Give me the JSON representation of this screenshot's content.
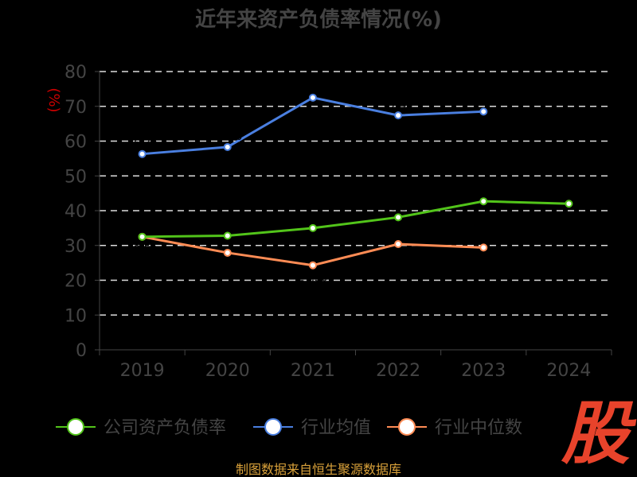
{
  "chart_data": {
    "type": "line",
    "title": "近年来资产负债率情况(%)",
    "ylabel": "(%)",
    "xlabel": "",
    "categories": [
      "2019",
      "2020",
      "2021",
      "2022",
      "2023",
      "2024"
    ],
    "ylim": [
      0,
      80
    ],
    "yticks": [
      0,
      10,
      20,
      30,
      40,
      50,
      60,
      70,
      80
    ],
    "grid": true,
    "legend_position": "bottom",
    "series": [
      {
        "name": "公司资产负债率",
        "color": "#52c41a",
        "values": [
          32.5,
          32.8,
          35.0,
          38.1,
          42.7,
          42.0
        ]
      },
      {
        "name": "行业均值",
        "color": "#4a7fe0",
        "values": [
          56.3,
          58.3,
          72.5,
          67.4,
          68.5,
          null
        ]
      },
      {
        "name": "行业中位数",
        "color": "#ff8c55",
        "values": [
          32.5,
          27.9,
          24.3,
          30.4,
          29.4,
          null
        ]
      }
    ]
  },
  "footer": {
    "source": "制图数据来自恒生聚源数据库",
    "watermark": "股"
  }
}
